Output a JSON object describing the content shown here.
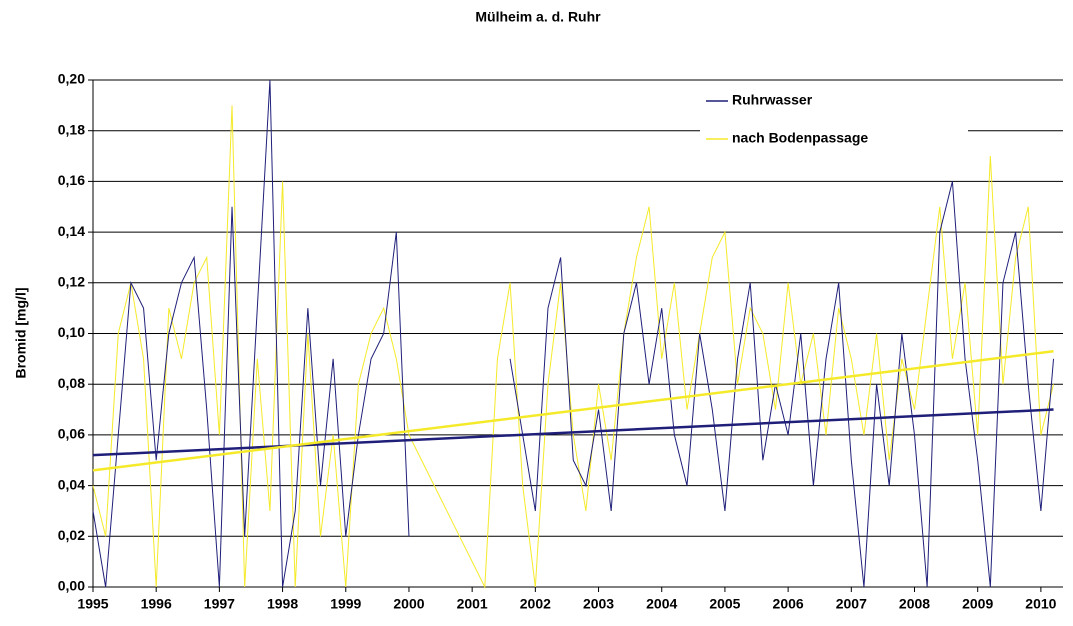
{
  "chart_data": {
    "type": "line",
    "title": "Mülheim a. d. Ruhr",
    "y_label": "Bromid [mg/l]",
    "xlim": [
      1995,
      2010.35
    ],
    "xticks": [
      1995,
      1996,
      1997,
      1998,
      1999,
      2000,
      2001,
      2002,
      2003,
      2004,
      2005,
      2006,
      2007,
      2008,
      2009,
      2010
    ],
    "ylim": [
      0,
      0.2
    ],
    "yticks": [
      {
        "value": 0,
        "label": "0,00"
      },
      {
        "value": 0.02,
        "label": "0,02"
      },
      {
        "value": 0.04,
        "label": "0,04"
      },
      {
        "value": 0.06,
        "label": "0,06"
      },
      {
        "value": 0.08,
        "label": "0,08"
      },
      {
        "value": 0.1,
        "label": "0,10"
      },
      {
        "value": 0.12,
        "label": "0,12"
      },
      {
        "value": 0.14,
        "label": "0,14"
      },
      {
        "value": 0.16,
        "label": "0,16"
      },
      {
        "value": 0.18,
        "label": "0,18"
      },
      {
        "value": 0.2,
        "label": "0,20"
      }
    ],
    "grid": true,
    "legend": "top-right",
    "x": [
      1995.0,
      1995.2,
      1995.4,
      1995.6,
      1995.8,
      1996.0,
      1996.2,
      1996.4,
      1996.6,
      1996.8,
      1997.0,
      1997.2,
      1997.4,
      1997.6,
      1997.8,
      1998.0,
      1998.2,
      1998.4,
      1998.6,
      1998.8,
      1999.0,
      1999.2,
      1999.4,
      1999.6,
      1999.8,
      2000.0,
      2000.2,
      2000.4,
      2000.6,
      2000.8,
      2001.0,
      2001.2,
      2001.4,
      2001.6,
      2001.8,
      2002.0,
      2002.2,
      2002.4,
      2002.6,
      2002.8,
      2003.0,
      2003.2,
      2003.4,
      2003.6,
      2003.8,
      2004.0,
      2004.2,
      2004.4,
      2004.6,
      2004.8,
      2005.0,
      2005.2,
      2005.4,
      2005.6,
      2005.8,
      2006.0,
      2006.2,
      2006.4,
      2006.6,
      2006.8,
      2007.0,
      2007.2,
      2007.4,
      2007.6,
      2007.8,
      2008.0,
      2008.2,
      2008.4,
      2008.6,
      2008.8,
      2009.0,
      2009.2,
      2009.4,
      2009.6,
      2009.8,
      2010.0,
      2010.2
    ],
    "series": [
      {
        "name": "Ruhrwasser",
        "color": "#1f1f7a",
        "values": [
          0.03,
          0.0,
          0.06,
          0.12,
          0.11,
          0.05,
          0.1,
          0.12,
          0.13,
          0.07,
          0.0,
          0.15,
          0.02,
          0.11,
          0.2,
          0.0,
          0.03,
          0.11,
          0.04,
          0.09,
          0.02,
          0.06,
          0.09,
          0.1,
          0.14,
          0.02,
          null,
          null,
          null,
          null,
          null,
          null,
          null,
          0.09,
          0.06,
          0.03,
          0.11,
          0.13,
          0.05,
          0.04,
          0.07,
          0.03,
          0.1,
          0.12,
          0.08,
          0.11,
          0.06,
          0.04,
          0.1,
          0.07,
          0.03,
          0.09,
          0.12,
          0.05,
          0.08,
          0.06,
          0.1,
          0.04,
          0.09,
          0.12,
          0.05,
          0.0,
          0.08,
          0.04,
          0.1,
          0.06,
          0.0,
          0.14,
          0.16,
          0.09,
          0.05,
          0.0,
          0.12,
          0.14,
          0.08,
          0.03,
          0.09
        ]
      },
      {
        "name": "nach Bodenpassage",
        "color": "#f5ea2a",
        "values": [
          0.04,
          0.02,
          0.1,
          0.12,
          0.09,
          0.0,
          0.11,
          0.09,
          0.12,
          0.13,
          0.06,
          0.19,
          0.0,
          0.09,
          0.03,
          0.16,
          0.0,
          0.1,
          0.02,
          0.06,
          0.0,
          0.08,
          0.1,
          0.11,
          0.09,
          0.06,
          0.05,
          0.04,
          0.03,
          0.02,
          0.01,
          0.0,
          0.09,
          0.12,
          0.04,
          0.0,
          0.08,
          0.12,
          0.06,
          0.03,
          0.08,
          0.05,
          0.1,
          0.13,
          0.15,
          0.09,
          0.12,
          0.07,
          0.1,
          0.13,
          0.14,
          0.08,
          0.11,
          0.1,
          0.07,
          0.12,
          0.08,
          0.1,
          0.06,
          0.11,
          0.09,
          0.06,
          0.1,
          0.05,
          0.09,
          0.07,
          0.11,
          0.15,
          0.09,
          0.12,
          0.06,
          0.17,
          0.08,
          0.13,
          0.15,
          0.06,
          0.08
        ]
      }
    ],
    "trend_lines": [
      {
        "color": "#1f1f7a",
        "x": [
          1995,
          2010.2
        ],
        "values": [
          0.052,
          0.07
        ]
      },
      {
        "color": "#f5ea2a",
        "x": [
          1995,
          2010.2
        ],
        "values": [
          0.046,
          0.093
        ]
      }
    ]
  }
}
